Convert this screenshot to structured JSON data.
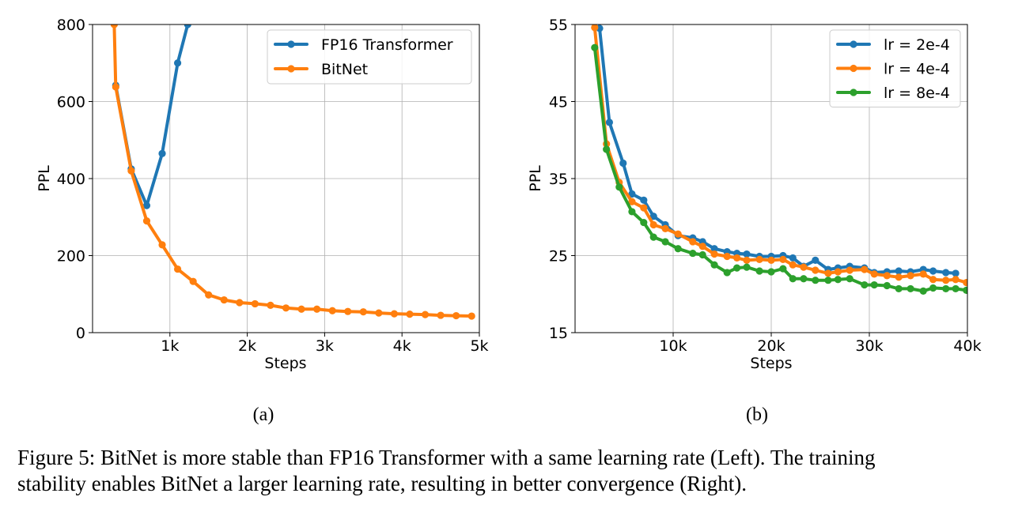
{
  "chart_data": [
    {
      "type": "line",
      "id": "a",
      "sublabel": "(a)",
      "xlabel": "Steps",
      "ylabel": "PPL",
      "xlim": [
        0,
        5000
      ],
      "ylim": [
        0,
        800
      ],
      "xticks": [
        1000,
        2000,
        3000,
        4000,
        5000
      ],
      "xtick_labels": [
        "1k",
        "2k",
        "3k",
        "4k",
        "5k"
      ],
      "yticks": [
        0,
        200,
        400,
        600,
        800
      ],
      "ytick_labels": [
        "0",
        "200",
        "400",
        "600",
        "800"
      ],
      "grid": true,
      "legend_position": "top-right",
      "series": [
        {
          "name": "FP16 Transformer",
          "color": "#1f77b4",
          "x": [
            300,
            500,
            700,
            900,
            1100,
            1230
          ],
          "y": [
            642,
            425,
            330,
            465,
            700,
            800
          ]
        },
        {
          "name": "BitNet",
          "color": "#ff7f0e",
          "x": [
            280,
            300,
            500,
            700,
            900,
            1100,
            1300,
            1500,
            1700,
            1900,
            2100,
            2300,
            2500,
            2700,
            2900,
            3100,
            3300,
            3500,
            3700,
            3900,
            4100,
            4300,
            4500,
            4700,
            4900
          ],
          "y": [
            800,
            638,
            420,
            290,
            228,
            165,
            133,
            98,
            85,
            78,
            75,
            71,
            64,
            61,
            61,
            57,
            55,
            54,
            51,
            49,
            48,
            47,
            45,
            44,
            43
          ]
        }
      ]
    },
    {
      "type": "line",
      "id": "b",
      "sublabel": "(b)",
      "xlabel": "Steps",
      "ylabel": "PPL",
      "xlim": [
        0,
        40000
      ],
      "ylim": [
        15,
        55
      ],
      "xticks": [
        10000,
        20000,
        30000,
        40000
      ],
      "xtick_labels": [
        "10k",
        "20k",
        "30k",
        "40k"
      ],
      "yticks": [
        15,
        25,
        35,
        45,
        55
      ],
      "ytick_labels": [
        "15",
        "25",
        "35",
        "45",
        "55"
      ],
      "grid": true,
      "legend_position": "top-right",
      "series": [
        {
          "name": "lr = 2e-4",
          "color": "#1f77b4",
          "x": [
            2500,
            3500,
            4900,
            5800,
            7000,
            8000,
            9200,
            10500,
            12000,
            13000,
            14200,
            15500,
            16500,
            17500,
            18800,
            20000,
            21200,
            22200,
            23300,
            24500,
            25800,
            26800,
            28000,
            29500,
            30500,
            31800,
            33000,
            34200,
            35500,
            36500,
            37800,
            38800
          ],
          "y": [
            54.5,
            42.3,
            37.0,
            33.0,
            32.2,
            30.1,
            29.0,
            27.6,
            27.3,
            26.8,
            25.9,
            25.5,
            25.3,
            25.2,
            24.9,
            24.9,
            25.0,
            24.7,
            23.6,
            24.4,
            23.2,
            23.4,
            23.6,
            23.4,
            22.8,
            22.9,
            23.0,
            22.9,
            23.2,
            23.0,
            22.8,
            22.7
          ]
        },
        {
          "name": "lr = 4e-4",
          "color": "#ff7f0e",
          "x": [
            2000,
            3200,
            4500,
            5800,
            7000,
            8000,
            9200,
            10500,
            12000,
            13000,
            14200,
            15500,
            16500,
            17500,
            18800,
            20000,
            21200,
            22200,
            23300,
            24500,
            25800,
            26800,
            28000,
            29500,
            30500,
            31800,
            33000,
            34200,
            35500,
            36500,
            37800,
            38800,
            39900
          ],
          "y": [
            54.6,
            39.5,
            34.5,
            32.0,
            31.2,
            29.0,
            28.5,
            27.8,
            26.8,
            26.2,
            25.2,
            24.9,
            24.7,
            24.4,
            24.5,
            24.4,
            24.5,
            23.8,
            23.5,
            23.1,
            22.7,
            22.9,
            23.1,
            23.2,
            22.6,
            22.4,
            22.2,
            22.4,
            22.6,
            21.9,
            21.8,
            21.9,
            21.5
          ]
        },
        {
          "name": "lr = 8e-4",
          "color": "#2ca02c",
          "x": [
            2000,
            3200,
            4500,
            5800,
            7000,
            8000,
            9200,
            10500,
            12000,
            13000,
            14200,
            15500,
            16500,
            17500,
            18800,
            20000,
            21200,
            22200,
            23300,
            24500,
            25800,
            26800,
            28000,
            29500,
            30500,
            31800,
            33000,
            34200,
            35500,
            36500,
            37800,
            38800,
            39900
          ],
          "y": [
            52.0,
            38.8,
            33.9,
            30.7,
            29.3,
            27.4,
            26.8,
            25.9,
            25.3,
            25.1,
            23.8,
            22.8,
            23.4,
            23.5,
            23.0,
            22.9,
            23.3,
            22.0,
            22.0,
            21.8,
            21.8,
            21.9,
            22.0,
            21.2,
            21.2,
            21.1,
            20.7,
            20.7,
            20.4,
            20.8,
            20.7,
            20.7,
            20.5
          ]
        }
      ]
    }
  ],
  "caption": {
    "line1": "Figure 5: BitNet is more stable than FP16 Transformer with a same learning rate (Left). The training",
    "line2": "stability enables BitNet a larger learning rate, resulting in better convergence (Right)."
  }
}
